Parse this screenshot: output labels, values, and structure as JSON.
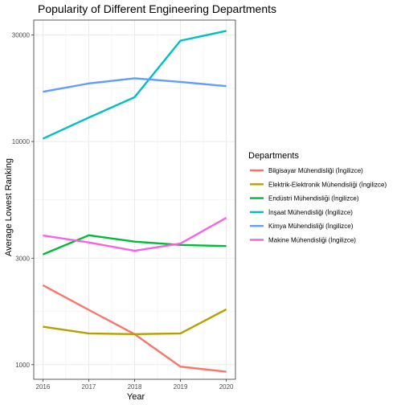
{
  "chart_data": {
    "type": "line",
    "title": "Popularity of Different Engineering Departments",
    "xlabel": "Year",
    "ylabel": "Average Lowest Ranking",
    "x": [
      2016,
      2017,
      2018,
      2019,
      2020
    ],
    "y_scale": "log",
    "ylim": [
      860,
      35000
    ],
    "y_ticks": [
      1000,
      3000,
      10000,
      30000
    ],
    "grid": true,
    "legend": {
      "title": "Departments",
      "position": "right"
    },
    "series": [
      {
        "name": "Bilgisayar Mühendisliği (İngilizce)",
        "color": "#F8766D",
        "values": [
          2270,
          1760,
          1370,
          980,
          930
        ]
      },
      {
        "name": "Elektrik-Elektronik Mühendisliği (İngilizce)",
        "color": "#B79F00",
        "values": [
          1480,
          1380,
          1370,
          1380,
          1770
        ]
      },
      {
        "name": "Endüstri Mühendisliği (İngilizce)",
        "color": "#00BA38",
        "values": [
          3120,
          3800,
          3560,
          3440,
          3400
        ]
      },
      {
        "name": "İnşaat Mühendisliği (İngilizce)",
        "color": "#00BFC4",
        "values": [
          10300,
          12800,
          15800,
          28300,
          31300
        ]
      },
      {
        "name": "Kimya Mühendisliği (İngilizce)",
        "color": "#619CFF",
        "values": [
          16700,
          18200,
          19200,
          18500,
          17700
        ]
      },
      {
        "name": "Makine Mühendisliği (İngilizce)",
        "color": "#F564E3",
        "values": [
          3790,
          3530,
          3240,
          3490,
          4550
        ]
      }
    ]
  }
}
